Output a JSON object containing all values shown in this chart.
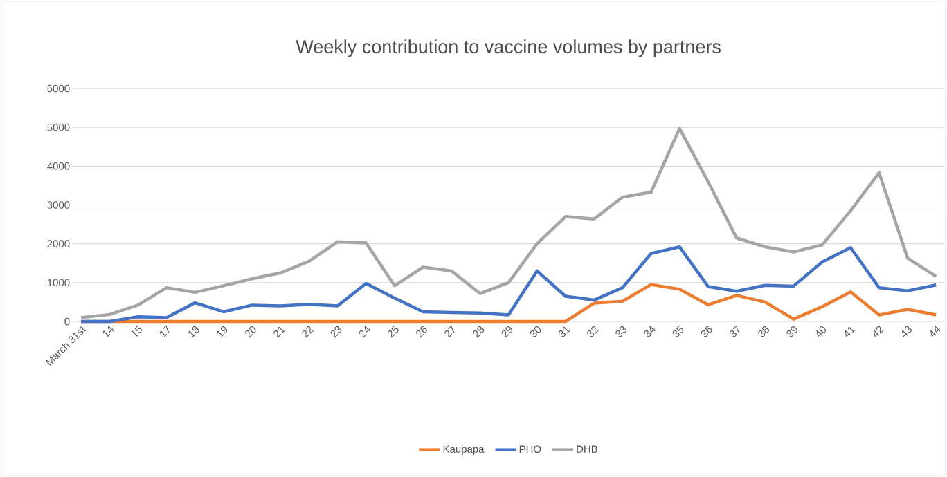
{
  "chart_data": {
    "type": "line",
    "title": "Weekly contribution to vaccine volumes by partners",
    "categories": [
      "March 31st",
      "14",
      "15",
      "17",
      "18",
      "19",
      "20",
      "21",
      "22",
      "23",
      "24",
      "25",
      "26",
      "27",
      "28",
      "29",
      "30",
      "31",
      "32",
      "33",
      "34",
      "35",
      "36",
      "37",
      "38",
      "39",
      "40",
      "41",
      "42",
      "43",
      "44"
    ],
    "series": [
      {
        "name": "Kaupapa",
        "color": "#ed7d31",
        "values": [
          0,
          0,
          0,
          0,
          0,
          0,
          0,
          0,
          0,
          0,
          0,
          0,
          0,
          0,
          0,
          0,
          0,
          0,
          470,
          520,
          950,
          830,
          430,
          670,
          500,
          60,
          380,
          760,
          170,
          310,
          170
        ]
      },
      {
        "name": "PHO",
        "color": "#4472c4",
        "values": [
          0,
          0,
          120,
          100,
          480,
          250,
          420,
          400,
          440,
          400,
          980,
          600,
          250,
          230,
          220,
          170,
          1300,
          650,
          550,
          870,
          1750,
          1920,
          900,
          780,
          930,
          910,
          1530,
          1900,
          870,
          790,
          940
        ]
      },
      {
        "name": "DHB",
        "color": "#a5a5a5",
        "values": [
          100,
          180,
          420,
          870,
          750,
          920,
          1100,
          1250,
          1550,
          2050,
          2020,
          920,
          1400,
          1300,
          720,
          1000,
          2000,
          2700,
          2640,
          3200,
          3330,
          4970,
          3600,
          2150,
          1920,
          1790,
          1970,
          2850,
          3830,
          1630,
          1160
        ]
      }
    ],
    "ylim": [
      0,
      6000
    ],
    "yticks": [
      0,
      1000,
      2000,
      3000,
      4000,
      5000,
      6000
    ],
    "grid": "y",
    "legend": "bottom",
    "marker": "none",
    "line_style": "solid"
  }
}
